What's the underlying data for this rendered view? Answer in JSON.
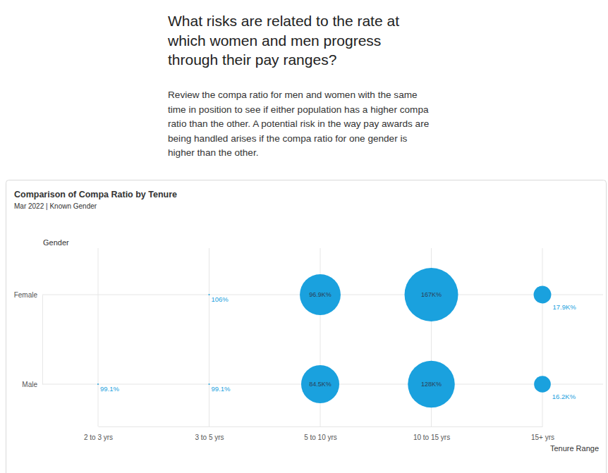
{
  "page": {
    "heading": [
      "What risks are related to the rate at",
      "which women and men progress",
      "through their pay ranges?"
    ],
    "description": [
      "Review the compa ratio for men and women with the same",
      "time in position to see if either population has a higher compa",
      "ratio than the other. A potential risk in the way pay awards are",
      "being handled arises if the compa ratio for one gender is",
      "higher than the other."
    ]
  },
  "chart_data": {
    "type": "bubble",
    "title": "Comparison of Compa Ratio by Tenure",
    "subtitle": "Mar 2022 | Known Gender",
    "xlabel": "Tenure Range",
    "ylabel": "Gender",
    "categories": [
      "2 to 3 yrs",
      "3 to 5 yrs",
      "5 to 10 yrs",
      "10 to 15 yrs",
      "15+ yrs"
    ],
    "series": [
      {
        "name": "Female",
        "values": [
          null,
          106,
          96900,
          167000,
          17900
        ],
        "value_labels": [
          null,
          "106%",
          "96.9K%",
          "167K%",
          "17.9K%"
        ]
      },
      {
        "name": "Male",
        "values": [
          99.1,
          99.1,
          84500,
          128000,
          16200
        ],
        "value_labels": [
          "99.1%",
          "99.1%",
          "84.5K%",
          "128K%",
          "16.2K%"
        ]
      }
    ],
    "color": "#1aa1de",
    "grid": true,
    "data_labels": true
  }
}
